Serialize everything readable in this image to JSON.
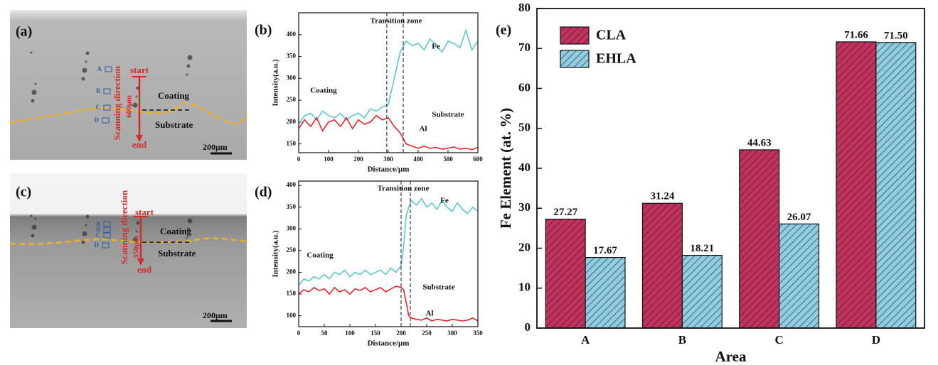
{
  "micrographs": [
    {
      "panel": "(a)",
      "start": "start",
      "end": "end",
      "direction": "Scanning direction",
      "length": "600μm",
      "coating": "Coating",
      "substrate": "Substrate",
      "scale": "200μm",
      "areas": [
        "A",
        "B",
        "C",
        "D"
      ]
    },
    {
      "panel": "(c)",
      "start": "start",
      "end": "end",
      "direction": "Scanning direction",
      "length": "350μm",
      "coating": "Coating",
      "substrate": "Substrate",
      "scale": "200μm",
      "areas": [
        "A",
        "B",
        "C",
        "D"
      ]
    }
  ],
  "chart_data": [
    {
      "type": "line",
      "panel": "(b)",
      "xlabel": "Distance/μm",
      "ylabel": "Intensity(a.u.)",
      "annotations": [
        "Transition zone",
        "Coating",
        "Substrate",
        "Fe",
        "Al"
      ],
      "x": [
        0,
        20,
        40,
        60,
        80,
        100,
        120,
        140,
        160,
        180,
        200,
        220,
        240,
        260,
        280,
        300,
        320,
        340,
        360,
        380,
        400,
        420,
        440,
        460,
        480,
        500,
        520,
        540,
        560,
        580,
        600
      ],
      "series": [
        {
          "name": "Fe",
          "color": "#5bc8d8",
          "values": [
            195,
            215,
            220,
            205,
            225,
            215,
            210,
            220,
            205,
            215,
            220,
            210,
            230,
            225,
            235,
            240,
            300,
            360,
            385,
            375,
            380,
            365,
            390,
            375,
            360,
            385,
            380,
            370,
            410,
            365,
            385
          ]
        },
        {
          "name": "Al",
          "color": "#e8262a",
          "values": [
            185,
            205,
            190,
            210,
            180,
            200,
            205,
            190,
            210,
            185,
            205,
            195,
            200,
            215,
            205,
            210,
            190,
            175,
            150,
            145,
            140,
            145,
            140,
            142,
            138,
            140,
            143,
            138,
            140,
            137,
            142
          ]
        }
      ],
      "vlines": [
        295,
        350
      ],
      "xlim": [
        0,
        600
      ],
      "xticks": [
        0,
        100,
        200,
        300,
        400,
        500,
        600
      ],
      "ylim": [
        130,
        450
      ],
      "yticks": [
        150,
        200,
        250,
        300,
        350,
        400
      ]
    },
    {
      "type": "line",
      "panel": "(d)",
      "xlabel": "Distance/μm",
      "ylabel": "Intensity(a.u.)",
      "annotations": [
        "Transition zone",
        "Coating",
        "Substrate",
        "Fe",
        "Al"
      ],
      "x": [
        0,
        10,
        20,
        30,
        40,
        50,
        60,
        70,
        80,
        90,
        100,
        110,
        120,
        130,
        140,
        150,
        160,
        170,
        180,
        190,
        200,
        205,
        210,
        215,
        220,
        230,
        240,
        250,
        260,
        270,
        280,
        290,
        300,
        310,
        320,
        330,
        340,
        350
      ],
      "series": [
        {
          "name": "Fe",
          "color": "#5bc8d8",
          "values": [
            170,
            185,
            180,
            190,
            185,
            195,
            185,
            200,
            195,
            205,
            190,
            200,
            195,
            205,
            195,
            200,
            205,
            195,
            210,
            200,
            215,
            260,
            330,
            350,
            365,
            355,
            370,
            350,
            360,
            345,
            365,
            350,
            340,
            360,
            345,
            335,
            350,
            340
          ]
        },
        {
          "name": "Al",
          "color": "#e8262a",
          "values": [
            150,
            160,
            155,
            165,
            158,
            162,
            150,
            165,
            155,
            160,
            150,
            162,
            158,
            165,
            155,
            160,
            165,
            155,
            162,
            168,
            165,
            160,
            130,
            100,
            95,
            92,
            90,
            95,
            88,
            92,
            90,
            88,
            92,
            90,
            88,
            90,
            95,
            88
          ]
        }
      ],
      "vlines": [
        200,
        218
      ],
      "xlim": [
        0,
        350
      ],
      "xticks": [
        0,
        50,
        100,
        150,
        200,
        250,
        300,
        350
      ],
      "ylim": [
        75,
        410
      ],
      "yticks": [
        100,
        150,
        200,
        250,
        300,
        350,
        400
      ]
    },
    {
      "type": "bar",
      "panel": "(e)",
      "xlabel": "Area",
      "ylabel": "Fe Element (at. %)",
      "legend": "upper left",
      "categories": [
        "A",
        "B",
        "C",
        "D"
      ],
      "series": [
        {
          "name": "CLA",
          "color": "#c3325f",
          "values": [
            27.27,
            31.24,
            44.63,
            71.66
          ],
          "value_labels": [
            "27.27",
            "31.24",
            "44.63",
            "71.66"
          ]
        },
        {
          "name": "EHLA",
          "color": "#8fcde2",
          "values": [
            17.67,
            18.21,
            26.07,
            71.5
          ],
          "value_labels": [
            "17.67",
            "18.21",
            "26.07",
            "71.50"
          ]
        }
      ],
      "ylim": [
        0,
        80
      ],
      "yticks": [
        0,
        10,
        20,
        30,
        40,
        50,
        60,
        70,
        80
      ]
    }
  ]
}
